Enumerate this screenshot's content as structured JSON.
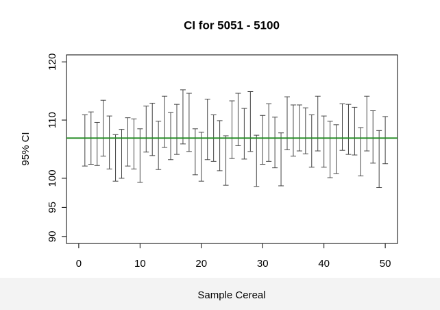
{
  "chart_data": {
    "type": "errorbar",
    "title": "CI for 5051 - 5100",
    "x_label": "Sample Cereal",
    "y_label": "95% CI",
    "x": [
      1,
      2,
      3,
      4,
      5,
      6,
      7,
      8,
      9,
      10,
      11,
      12,
      13,
      14,
      15,
      16,
      17,
      18,
      19,
      20,
      21,
      22,
      23,
      24,
      25,
      26,
      27,
      28,
      29,
      30,
      31,
      32,
      33,
      34,
      35,
      36,
      37,
      38,
      39,
      40,
      41,
      42,
      43,
      44,
      45,
      46,
      47,
      48,
      49,
      50
    ],
    "lower": [
      102.1,
      102.4,
      102.2,
      103.8,
      101.6,
      99.5,
      100.0,
      102.1,
      101.6,
      99.3,
      104.5,
      103.9,
      101.5,
      105.3,
      103.2,
      104.1,
      105.9,
      104.6,
      100.6,
      99.5,
      103.2,
      102.9,
      101.3,
      98.8,
      103.4,
      105.6,
      103.3,
      104.6,
      98.6,
      102.4,
      102.9,
      101.8,
      98.7,
      104.9,
      103.8,
      104.7,
      104.2,
      101.9,
      104.7,
      101.9,
      100.1,
      100.8,
      104.8,
      104.1,
      104.0,
      100.4,
      104.7,
      102.6,
      98.4,
      102.5
    ],
    "upper": [
      110.9,
      111.4,
      109.6,
      113.4,
      110.7,
      107.5,
      108.4,
      110.4,
      110.2,
      108.5,
      112.4,
      112.9,
      109.8,
      114.1,
      111.3,
      112.7,
      115.2,
      114.6,
      108.5,
      107.9,
      113.6,
      110.9,
      109.9,
      107.3,
      113.3,
      114.6,
      112.0,
      114.9,
      107.4,
      110.8,
      112.8,
      110.5,
      107.8,
      114.0,
      112.6,
      112.6,
      112.1,
      110.9,
      114.1,
      110.7,
      109.8,
      109.2,
      112.8,
      112.7,
      112.2,
      108.7,
      114.1,
      111.6,
      108.2,
      110.6
    ],
    "color": "#444444",
    "reference_line": {
      "value": 106.9,
      "color": "#228b22"
    },
    "xlim": [
      -2,
      52
    ],
    "xticks": [
      0,
      10,
      20,
      30,
      40,
      50
    ],
    "ylim": [
      88.8,
      121.2
    ],
    "yticks": [
      90,
      95,
      100,
      110,
      120
    ]
  }
}
